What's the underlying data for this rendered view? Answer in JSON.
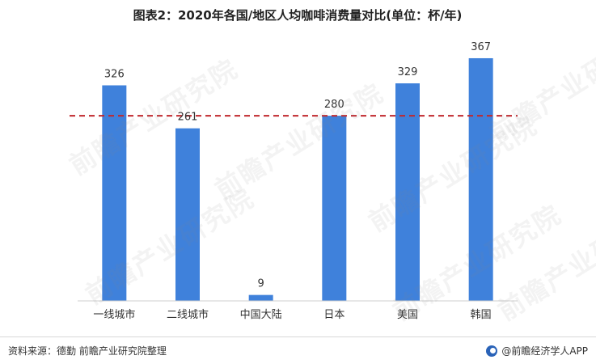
{
  "chart_data": {
    "type": "bar",
    "title": "图表2：2020年各国/地区人均咖啡消费量对比(单位：杯/年)",
    "categories": [
      "一线城市",
      "二线城市",
      "中国大陆",
      "日本",
      "美国",
      "韩国"
    ],
    "values": [
      326,
      261,
      9,
      280,
      329,
      367
    ],
    "ylim": [
      0,
      400
    ],
    "reference_line": 280,
    "grid": false,
    "legend": "none",
    "colors": {
      "bar": "#3f81db",
      "reference_line": "#c0272d",
      "axis": "#cfcfcf"
    }
  },
  "footer": {
    "source": "资料来源：德勤 前瞻产业研究院整理",
    "brand": "@前瞻经济学人APP"
  },
  "watermark": {
    "text": "前瞻产业研究院"
  }
}
